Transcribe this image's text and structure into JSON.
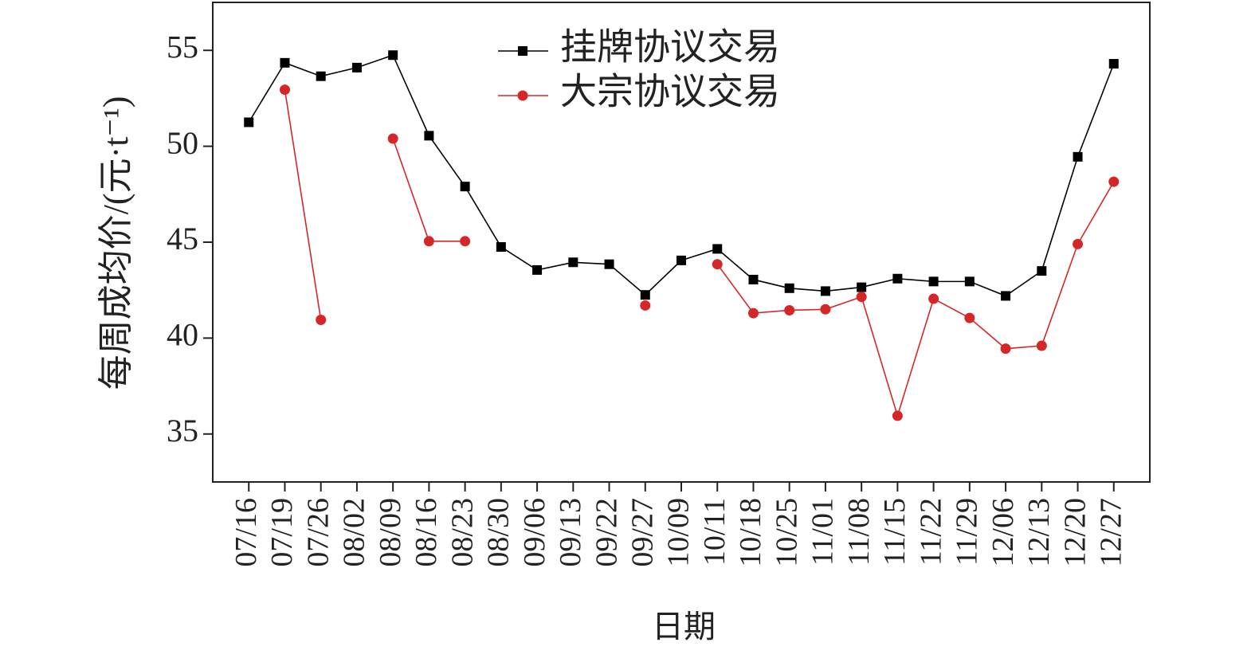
{
  "chart_data": {
    "type": "line",
    "x_label": "日期",
    "y_label": "每周成均价/(元·t⁻¹)",
    "categories": [
      "07/16",
      "07/19",
      "07/26",
      "08/02",
      "08/09",
      "08/16",
      "08/23",
      "08/30",
      "09/06",
      "09/13",
      "09/22",
      "09/27",
      "10/09",
      "10/11",
      "10/18",
      "10/25",
      "11/01",
      "11/08",
      "11/15",
      "11/22",
      "11/29",
      "12/06",
      "12/13",
      "12/20",
      "12/27"
    ],
    "series": [
      {
        "name": "挂牌协议交易",
        "color": "#000000",
        "marker": "square",
        "values": [
          51.25,
          54.35,
          53.65,
          54.1,
          54.75,
          50.55,
          47.9,
          44.75,
          43.55,
          43.95,
          43.85,
          42.25,
          44.05,
          44.65,
          43.05,
          42.6,
          42.45,
          42.65,
          43.1,
          42.95,
          42.95,
          42.2,
          43.5,
          49.45,
          54.3
        ]
      },
      {
        "name": "大宗协议交易",
        "color": "#d62728",
        "marker": "circle",
        "values": [
          null,
          52.95,
          40.95,
          null,
          50.4,
          45.05,
          45.05,
          null,
          null,
          null,
          null,
          41.7,
          null,
          43.85,
          41.3,
          41.45,
          41.5,
          42.15,
          35.95,
          42.05,
          41.05,
          39.45,
          39.6,
          44.9,
          48.15
        ]
      }
    ],
    "ylim": [
      32.5,
      57.5
    ],
    "yticks": [
      35,
      40,
      45,
      50,
      55
    ],
    "grid": false,
    "legend": "upper center"
  }
}
